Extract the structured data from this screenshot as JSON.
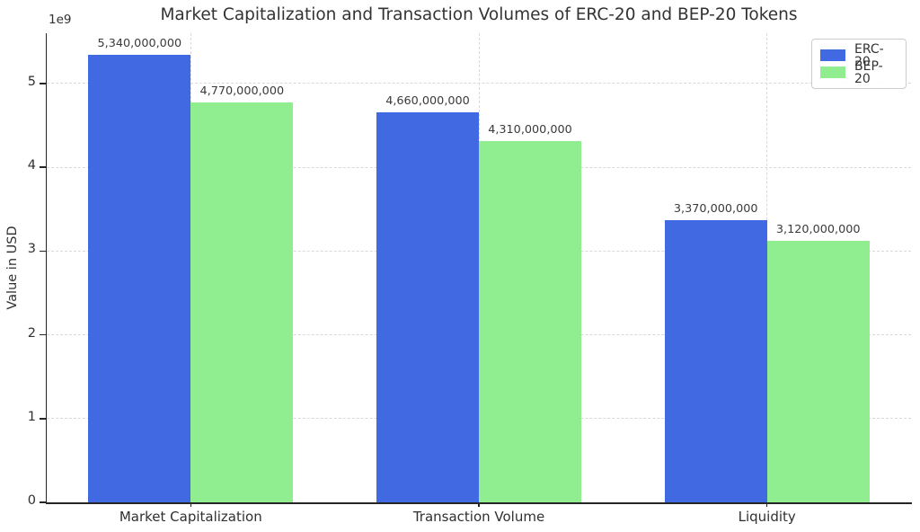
{
  "chart_data": {
    "type": "bar",
    "title": "Market Capitalization and Transaction Volumes of ERC-20 and BEP-20 Tokens",
    "xlabel": "",
    "ylabel": "Value in USD",
    "offset_label": "1e9",
    "categories": [
      "Market Capitalization",
      "Transaction Volume",
      "Liquidity"
    ],
    "series": [
      {
        "name": "ERC-20",
        "color": "#4169e1",
        "values": [
          5340000000,
          4660000000,
          3370000000
        ],
        "labels": [
          "5,340,000,000",
          "4,660,000,000",
          "3,370,000,000"
        ]
      },
      {
        "name": "BEP-20",
        "color": "#90ee90",
        "values": [
          4770000000,
          4310000000,
          3120000000
        ],
        "labels": [
          "4,770,000,000",
          "4,310,000,000",
          "3,120,000,000"
        ]
      }
    ],
    "ylim": [
      0,
      5600000000
    ],
    "yticks": [
      0,
      1,
      2,
      3,
      4,
      5
    ],
    "ytick_unit": 1000000000,
    "grid": {
      "style": "dashed",
      "axes": "both",
      "color": "#d9d9d9"
    },
    "legend_position": "upper right",
    "spine_color": "#262626",
    "text_color": "#303030",
    "value_label_color": "#3a3a3a"
  }
}
